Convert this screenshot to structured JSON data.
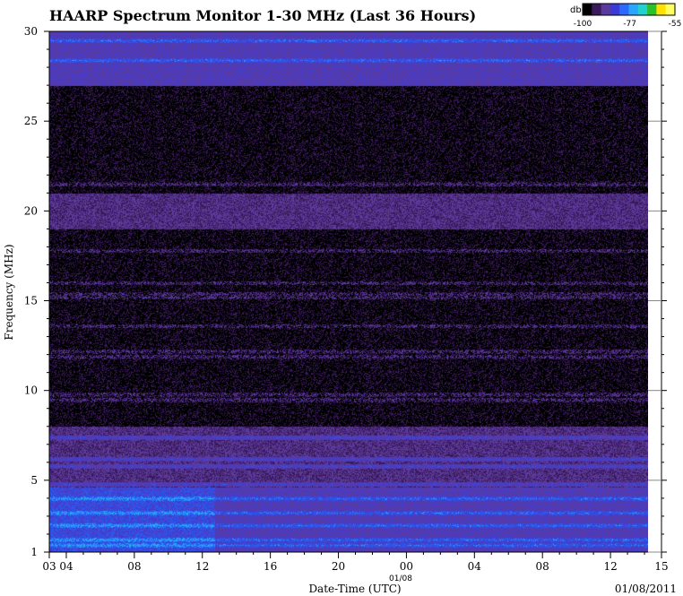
{
  "chart_data": {
    "type": "heatmap",
    "title": "HAARP Spectrum Monitor 1-30 MHz (Last 36 Hours)",
    "xlabel": "Date-Time (UTC)",
    "ylabel": "Frequency (MHz)",
    "date_label": "01/08/2011",
    "day_marker": "01/08",
    "x_ticks": [
      "03",
      "04",
      "08",
      "12",
      "16",
      "20",
      "00",
      "04",
      "08",
      "12",
      "15"
    ],
    "x_tick_hours": [
      3,
      4,
      8,
      12,
      16,
      20,
      24,
      28,
      32,
      36,
      39
    ],
    "x_data_end_hour": 38.3,
    "y_ticks": [
      "1",
      "5",
      "10",
      "15",
      "20",
      "25",
      "30"
    ],
    "y_tick_values": [
      1,
      5,
      10,
      15,
      20,
      25,
      30
    ],
    "ylim": [
      1,
      30
    ],
    "xlim_hours": [
      3,
      39
    ],
    "colorbar": {
      "label": "db",
      "ticks": [
        "-100",
        "-77",
        "-55"
      ],
      "tick_values": [
        -100,
        -77,
        -55
      ],
      "colors": [
        "#000000",
        "#3a1a5a",
        "#5a3a9c",
        "#3a3ad8",
        "#2a6aff",
        "#2aa6ff",
        "#22d0d0",
        "#2ac02a",
        "#ffe000",
        "#ffff60"
      ]
    },
    "bands": [
      {
        "f_min": 1.0,
        "f_max": 4.6,
        "level": "strong",
        "t_end_hour": 12.7
      },
      {
        "f_min": 1.0,
        "f_max": 4.6,
        "level": "medium",
        "t_start_hour": 12.7
      },
      {
        "f_min": 4.6,
        "f_max": 8.0,
        "level": "weak"
      },
      {
        "f_min": 8.0,
        "f_max": 19.0,
        "level": "noise"
      },
      {
        "f_min": 19.0,
        "f_max": 21.0,
        "level": "weak"
      },
      {
        "f_min": 21.0,
        "f_max": 27.0,
        "level": "noise"
      },
      {
        "f_min": 27.0,
        "f_max": 30.0,
        "level": "medium"
      }
    ],
    "signal_lines_mhz": [
      1.4,
      1.7,
      2.5,
      3.2,
      4.0,
      4.8,
      5.8,
      6.2,
      7.4,
      9.5,
      9.8,
      11.9,
      12.2,
      13.6,
      15.2,
      15.4,
      16.0,
      17.8,
      21.5,
      28.4,
      29.5
    ]
  }
}
